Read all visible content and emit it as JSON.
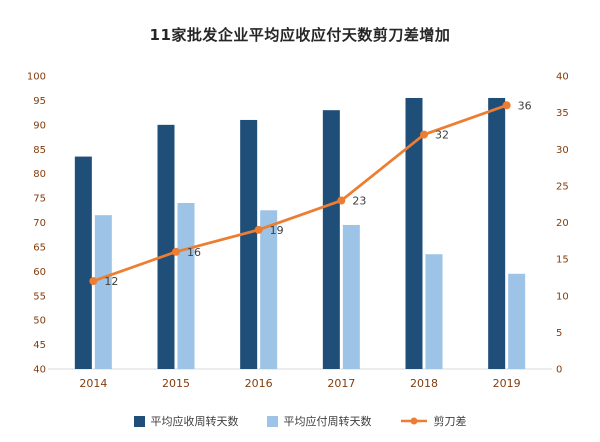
{
  "chart_data": {
    "type": "combo-bar-line",
    "title": "11家批发企业平均应收应付天数剪刀差增加",
    "categories": [
      "2014",
      "2015",
      "2016",
      "2017",
      "2018",
      "2019"
    ],
    "series": [
      {
        "name": "平均应收周转天数",
        "type": "bar",
        "axis": "left",
        "color": "#1f4e79",
        "values": [
          83.5,
          90,
          91,
          93,
          95.5,
          95.5
        ]
      },
      {
        "name": "平均应付周转天数",
        "type": "bar",
        "axis": "left",
        "color": "#9dc3e6",
        "values": [
          71.5,
          74,
          72.5,
          69.5,
          63.5,
          59.5
        ]
      },
      {
        "name": "剪刀差",
        "type": "line",
        "axis": "right",
        "color": "#ed7d31",
        "values": [
          12,
          16,
          19,
          23,
          32,
          36
        ],
        "data_labels": [
          "12",
          "16",
          "19",
          "23",
          "32",
          "36"
        ]
      }
    ],
    "left_axis": {
      "min": 40,
      "max": 100,
      "step": 5
    },
    "right_axis": {
      "min": 0,
      "max": 40,
      "step": 5
    },
    "legend_position": "bottom",
    "grid": false
  },
  "colors": {
    "background": "#ffffff",
    "title": "#262626",
    "axis_labels": "#843c0c",
    "data_labels": "#404040",
    "baseline": "#d9d9d9"
  }
}
